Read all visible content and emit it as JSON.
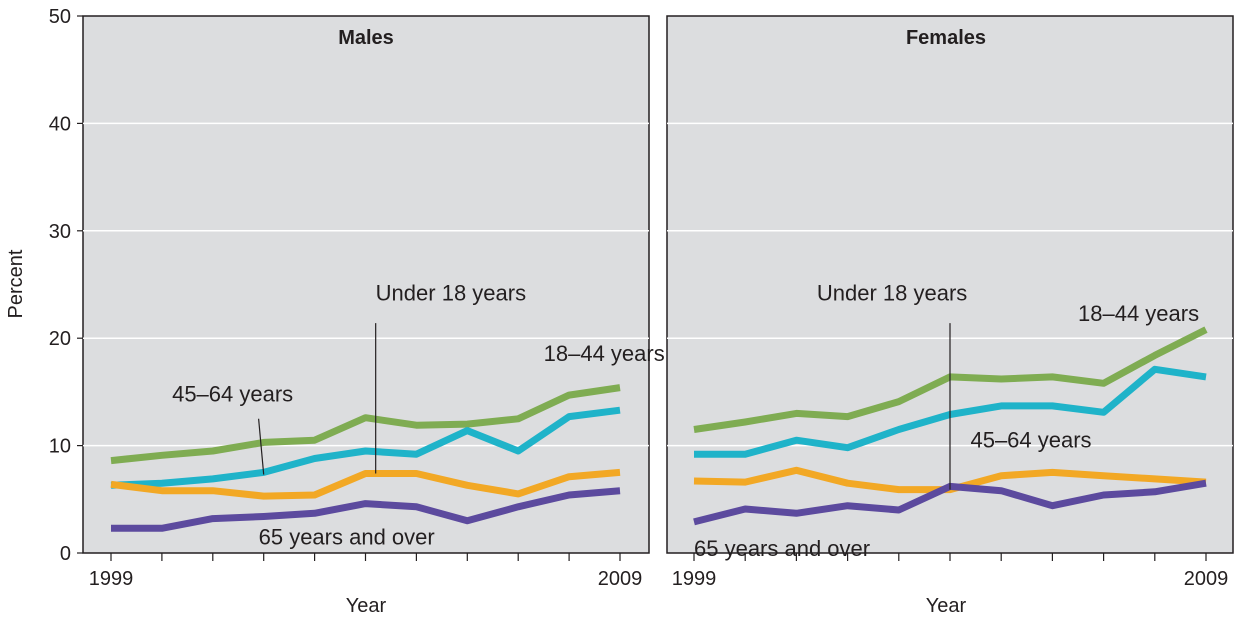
{
  "chart_data": [
    {
      "type": "line",
      "title": "Males",
      "xlabel": "Year",
      "ylabel": "Percent",
      "ylim": [
        0,
        50
      ],
      "yticks": [
        "0",
        "10",
        "20",
        "30",
        "40",
        "50"
      ],
      "x": [
        1999,
        2000,
        2001,
        2002,
        2003,
        2004,
        2005,
        2006,
        2007,
        2008,
        2009
      ],
      "xtick_labels": [
        "1999",
        "2009"
      ],
      "grid": "horizontal",
      "series": [
        {
          "name": "18–44 years",
          "color": "#7fac52",
          "values": [
            8.6,
            9.1,
            9.5,
            10.3,
            10.5,
            12.6,
            11.9,
            12.0,
            12.5,
            14.7,
            15.4
          ]
        },
        {
          "name": "45–64 years",
          "color": "#1fb3c9",
          "values": [
            6.3,
            6.5,
            6.9,
            7.5,
            8.8,
            9.5,
            9.2,
            11.4,
            9.5,
            12.7,
            13.3
          ]
        },
        {
          "name": "Under 18 years",
          "color": "#f2a825",
          "values": [
            6.4,
            5.8,
            5.8,
            5.3,
            5.4,
            7.4,
            7.4,
            6.3,
            5.5,
            7.1,
            7.5
          ]
        },
        {
          "name": "65 years and over",
          "color": "#5c4a9e",
          "values": [
            2.3,
            2.3,
            3.2,
            3.4,
            3.7,
            4.6,
            4.3,
            3.0,
            4.3,
            5.4,
            5.8
          ]
        }
      ]
    },
    {
      "type": "line",
      "title": "Females",
      "xlabel": "Year",
      "ylabel": "",
      "ylim": [
        0,
        50
      ],
      "x": [
        1999,
        2000,
        2001,
        2002,
        2003,
        2004,
        2005,
        2006,
        2007,
        2008,
        2009
      ],
      "xtick_labels": [
        "1999",
        "2009"
      ],
      "grid": "horizontal",
      "series": [
        {
          "name": "18–44 years",
          "color": "#7fac52",
          "values": [
            11.5,
            12.2,
            13.0,
            12.7,
            14.1,
            16.4,
            16.2,
            16.4,
            15.8,
            18.4,
            20.8
          ]
        },
        {
          "name": "45–64 years",
          "color": "#1fb3c9",
          "values": [
            9.2,
            9.2,
            10.5,
            9.8,
            11.5,
            12.9,
            13.7,
            13.7,
            13.1,
            17.1,
            16.4
          ]
        },
        {
          "name": "Under 18 years",
          "color": "#f2a825",
          "values": [
            6.7,
            6.6,
            7.7,
            6.5,
            5.9,
            5.9,
            7.2,
            7.5,
            7.2,
            6.9,
            6.6
          ]
        },
        {
          "name": "65 years and over",
          "color": "#5c4a9e",
          "values": [
            2.9,
            4.1,
            3.7,
            4.4,
            4.0,
            6.2,
            5.8,
            4.4,
            5.4,
            5.7,
            6.5
          ]
        }
      ]
    }
  ],
  "annotations": [
    {
      "panel": 0,
      "text": "Under 18 years",
      "x": 2004.2,
      "y": 23.5,
      "leader": [
        2004.2,
        21.4,
        2004.2,
        7.4
      ]
    },
    {
      "panel": 0,
      "text": "18–44 years",
      "x": 2007.5,
      "y": 17.9
    },
    {
      "panel": 0,
      "text": "45–64 years",
      "x": 2000.2,
      "y": 14.1,
      "leader": [
        2001.9,
        12.5,
        2002.0,
        7.3
      ]
    },
    {
      "panel": 0,
      "text": "65 years and over",
      "x": 2001.9,
      "y": 0.8
    },
    {
      "panel": 1,
      "text": "Under 18 years",
      "x": 2001.4,
      "y": 23.5,
      "leader": [
        2004.0,
        21.4,
        2004.0,
        5.9
      ]
    },
    {
      "panel": 1,
      "text": "18–44 years",
      "x": 2006.5,
      "y": 21.6
    },
    {
      "panel": 1,
      "text": "45–64 years",
      "x": 2004.4,
      "y": 9.8
    },
    {
      "panel": 1,
      "text": "65 years and over",
      "x": 1999.0,
      "y": -0.3
    }
  ]
}
